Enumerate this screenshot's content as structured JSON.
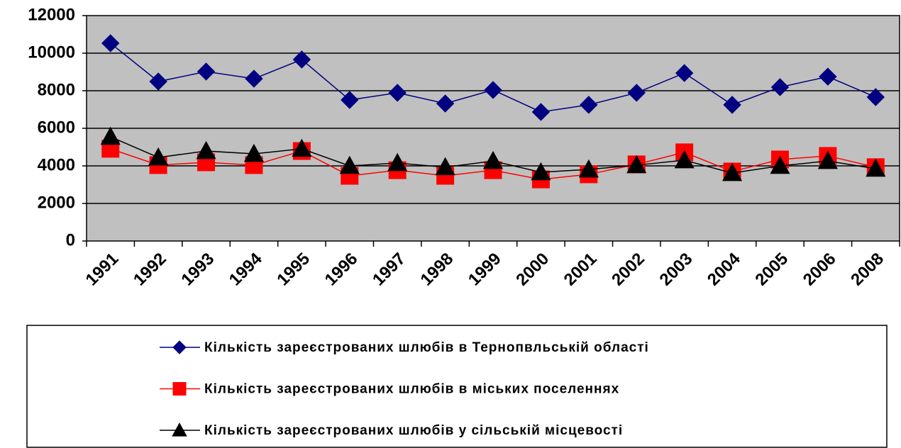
{
  "chart_data": {
    "type": "line",
    "categories": [
      "1991",
      "1992",
      "1993",
      "1994",
      "1995",
      "1996",
      "1997",
      "1998",
      "1999",
      "2000",
      "2001",
      "2002",
      "2003",
      "2004",
      "2005",
      "2006",
      "2008"
    ],
    "series": [
      {
        "name": "Кількість зареєстрованих шлюбів в Тернопвльській області",
        "color": "#000080",
        "marker": "diamond",
        "values": [
          10530,
          8490,
          9020,
          8640,
          9660,
          7510,
          7890,
          7320,
          8040,
          6870,
          7250,
          7890,
          8940,
          7250,
          8190,
          8750,
          7660
        ]
      },
      {
        "name": "Кількість зареєстрованих шлюбів в міських поселеннях",
        "color": "#ff0000",
        "marker": "square",
        "values": [
          4910,
          4040,
          4190,
          4040,
          4790,
          3470,
          3770,
          3470,
          3770,
          3280,
          3550,
          4080,
          4720,
          3700,
          4340,
          4530,
          3930
        ]
      },
      {
        "name": "Кількість зареєстрованих шлюбів у сільській місцевості",
        "color": "#000000",
        "marker": "triangle",
        "values": [
          5550,
          4450,
          4790,
          4640,
          4910,
          4000,
          4150,
          3930,
          4260,
          3660,
          3810,
          4040,
          4300,
          3620,
          4000,
          4260,
          3850
        ]
      }
    ],
    "ylim": [
      0,
      12000
    ],
    "yticks": [
      0,
      2000,
      4000,
      6000,
      8000,
      10000,
      12000
    ],
    "grid": true,
    "legend": "bottom"
  }
}
